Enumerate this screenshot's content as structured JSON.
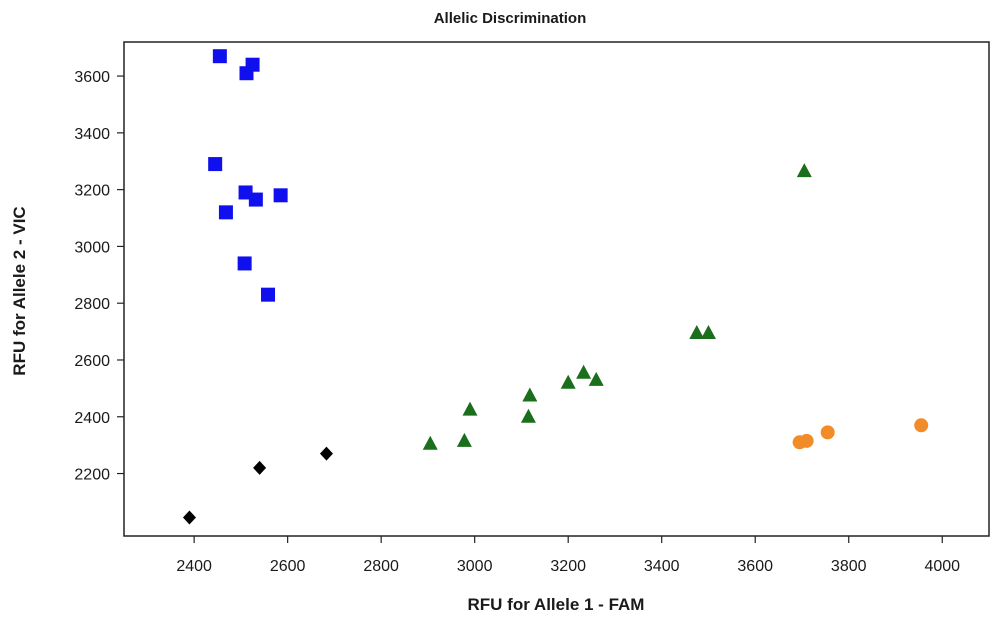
{
  "chart_data": {
    "type": "scatter",
    "title": "Allelic Discrimination",
    "xlabel": "RFU for Allele 1 - FAM",
    "ylabel": "RFU for Allele 2 - VIC",
    "xlim": [
      2250,
      4100
    ],
    "ylim": [
      1980,
      3720
    ],
    "xticks": [
      2400,
      2600,
      2800,
      3000,
      3200,
      3400,
      3600,
      3800,
      4000
    ],
    "yticks": [
      2200,
      2400,
      2600,
      2800,
      3000,
      3200,
      3400,
      3600
    ],
    "grid": false,
    "legend": "none",
    "series": [
      {
        "marker": "square",
        "color": "#1010ee",
        "points": [
          [
            2455,
            3670
          ],
          [
            2525,
            3640
          ],
          [
            2512,
            3610
          ],
          [
            2445,
            3290
          ],
          [
            2510,
            3190
          ],
          [
            2585,
            3180
          ],
          [
            2532,
            3165
          ],
          [
            2468,
            3120
          ],
          [
            2508,
            2940
          ],
          [
            2558,
            2830
          ]
        ]
      },
      {
        "marker": "triangle",
        "color": "#1b6e1b",
        "points": [
          [
            3705,
            3265
          ],
          [
            3475,
            2695
          ],
          [
            3500,
            2695
          ],
          [
            3233,
            2555
          ],
          [
            3260,
            2530
          ],
          [
            3200,
            2520
          ],
          [
            3118,
            2475
          ],
          [
            2990,
            2425
          ],
          [
            3115,
            2400
          ],
          [
            2978,
            2315
          ],
          [
            2905,
            2305
          ]
        ]
      },
      {
        "marker": "circle",
        "color": "#f28c28",
        "points": [
          [
            3695,
            2310
          ],
          [
            3710,
            2315
          ],
          [
            3755,
            2345
          ],
          [
            3955,
            2370
          ]
        ]
      },
      {
        "marker": "diamond",
        "color": "#000000",
        "points": [
          [
            2683,
            2270
          ],
          [
            2540,
            2220
          ],
          [
            2390,
            2045
          ]
        ]
      }
    ]
  }
}
